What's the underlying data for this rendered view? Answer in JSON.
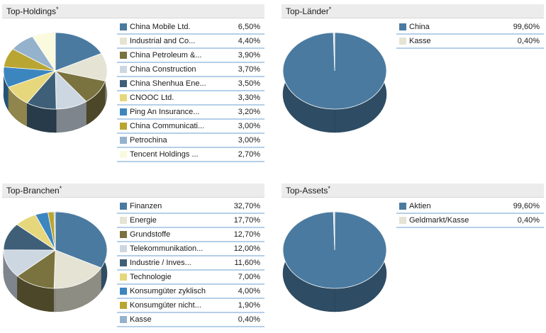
{
  "chart_data": [
    {
      "type": "pie",
      "title": "Top-Holdings",
      "title_mark": "*",
      "categories": [
        "China Mobile Ltd.",
        "Industrial and Co...",
        "China Petroleum &...",
        "China Construction",
        "China Shenhua Ene...",
        "CNOOC Ltd.",
        "Ping An Insurance...",
        "China Communicati...",
        "Petrochina",
        "Tencent Holdings ..."
      ],
      "values": [
        6.5,
        4.4,
        3.9,
        3.7,
        3.5,
        3.3,
        3.2,
        3.0,
        3.0,
        2.7
      ],
      "value_labels": [
        "6,50%",
        "4,40%",
        "3,90%",
        "3,70%",
        "3,50%",
        "3,30%",
        "3,20%",
        "3,00%",
        "3,00%",
        "2,70%"
      ],
      "colors": [
        "#4a7aa0",
        "#e5e3d3",
        "#7a7340",
        "#cdd7e2",
        "#3f5f78",
        "#e6d77c",
        "#3c86c0",
        "#b9a532",
        "#95b2cc",
        "#fafade"
      ]
    },
    {
      "type": "pie",
      "title": "Top-Länder",
      "title_mark": "*",
      "categories": [
        "China",
        "Kasse"
      ],
      "values": [
        99.6,
        0.4
      ],
      "value_labels": [
        "99,60%",
        "0,40%"
      ],
      "colors": [
        "#4a7aa0",
        "#e5e3d3"
      ]
    },
    {
      "type": "pie",
      "title": "Top-Branchen",
      "title_mark": "*",
      "categories": [
        "Finanzen",
        "Energie",
        "Grundstoffe",
        "Telekommunikation...",
        "Industrie / Inves...",
        "Technologie",
        "Konsumgüter zyklisch",
        "Konsumgüter nicht...",
        "Kasse"
      ],
      "values": [
        32.7,
        17.7,
        12.7,
        12.0,
        11.6,
        7.0,
        4.0,
        1.9,
        0.4
      ],
      "value_labels": [
        "32,70%",
        "17,70%",
        "12,70%",
        "12,00%",
        "11,60%",
        "7,00%",
        "4,00%",
        "1,90%",
        "0,40%"
      ],
      "colors": [
        "#4a7aa0",
        "#e5e3d3",
        "#7a7340",
        "#cdd7e2",
        "#3f5f78",
        "#e6d77c",
        "#3c86c0",
        "#b9a532",
        "#95b2cc"
      ]
    },
    {
      "type": "pie",
      "title": "Top-Assets",
      "title_mark": "*",
      "categories": [
        "Aktien",
        "Geldmarkt/Kasse"
      ],
      "values": [
        99.6,
        0.4
      ],
      "value_labels": [
        "99,60%",
        "0,40%"
      ],
      "colors": [
        "#4a7aa0",
        "#e5e3d3"
      ]
    }
  ]
}
